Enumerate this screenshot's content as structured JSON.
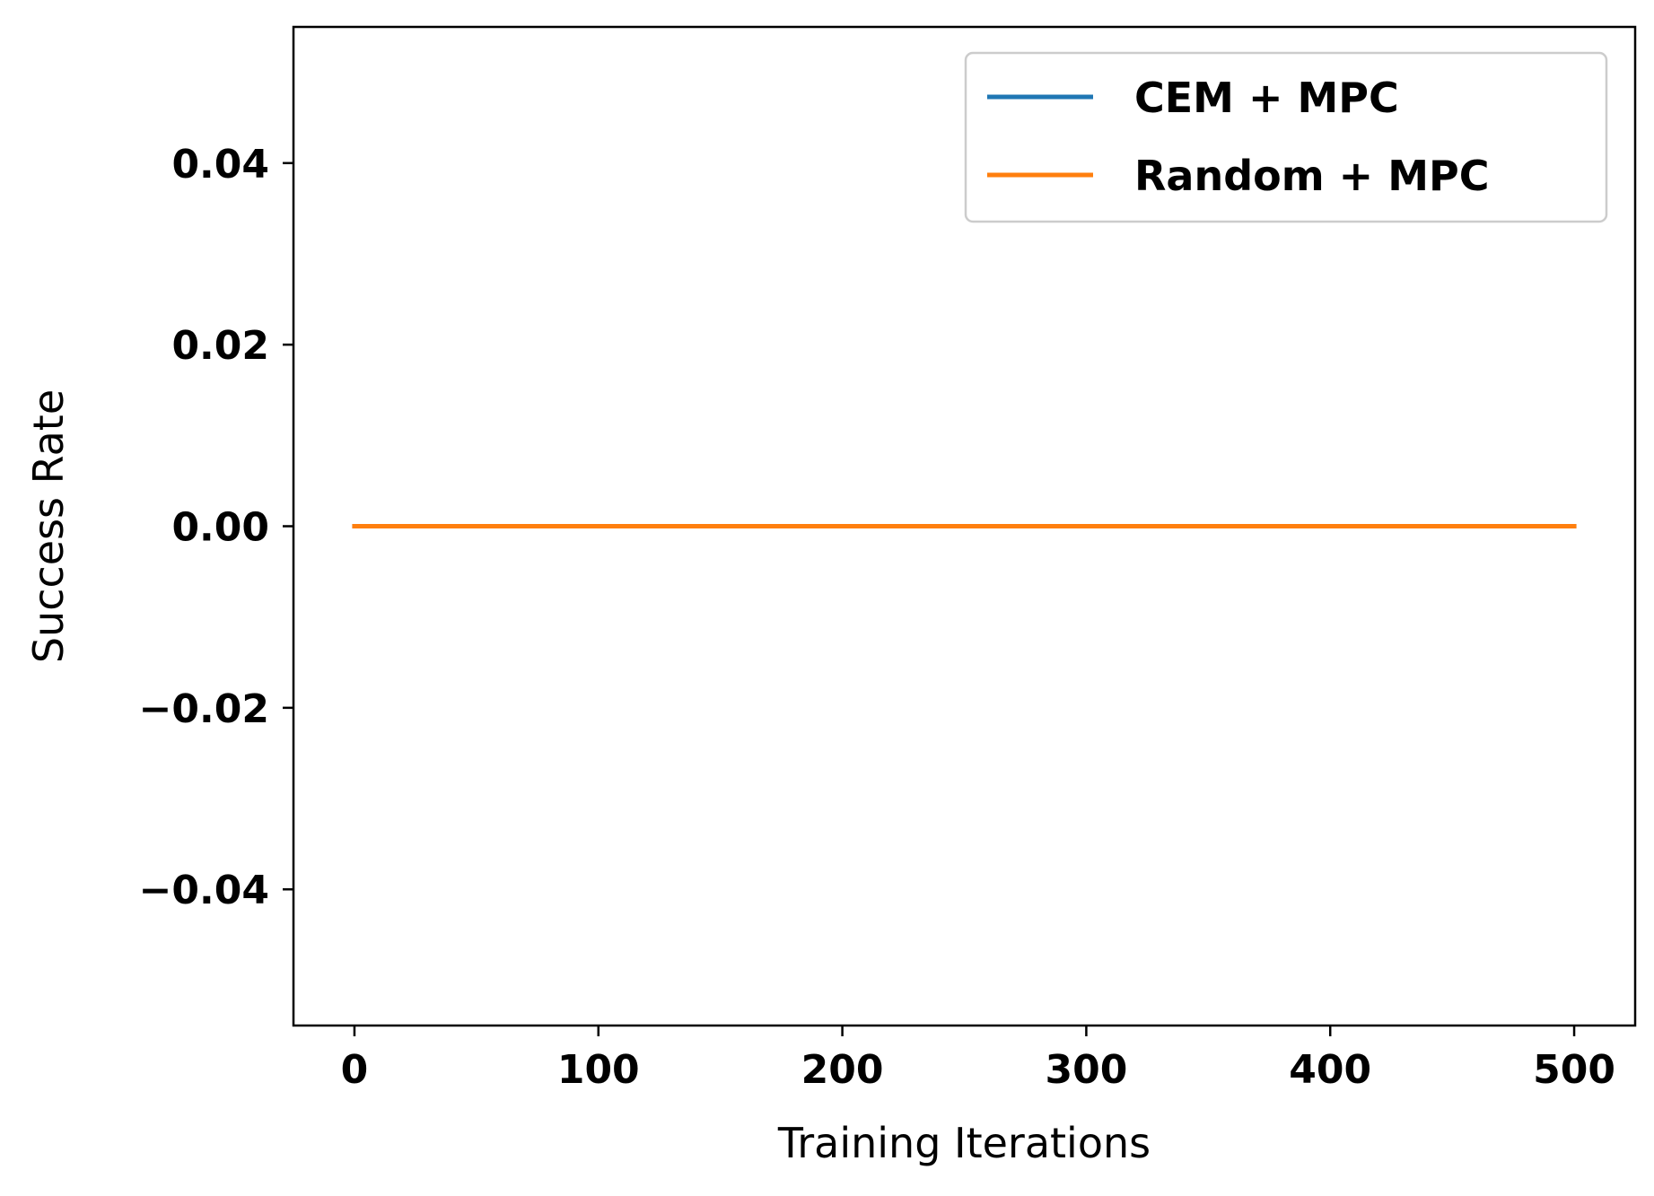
{
  "chart_data": {
    "type": "line",
    "title": "",
    "xlabel": "Training Iterations",
    "ylabel": "Success Rate",
    "xlim": [
      -25,
      525
    ],
    "ylim": [
      -0.055,
      0.055
    ],
    "x_ticks": [
      0,
      100,
      200,
      300,
      400,
      500
    ],
    "x_tick_labels": [
      "0",
      "100",
      "200",
      "300",
      "400",
      "500"
    ],
    "y_ticks": [
      0.04,
      0.02,
      0.0,
      -0.02,
      -0.04
    ],
    "y_tick_labels": [
      "0.04",
      "0.02",
      "0.00",
      "−0.02",
      "−0.04"
    ],
    "grid": false,
    "legend_position": "top-right",
    "series": [
      {
        "name": "CEM + MPC",
        "color": "#1f77b4",
        "x": [
          0,
          500
        ],
        "y": [
          0,
          0
        ]
      },
      {
        "name": "Random + MPC",
        "color": "#ff7f0e",
        "x": [
          0,
          500
        ],
        "y": [
          0,
          0
        ]
      }
    ]
  }
}
